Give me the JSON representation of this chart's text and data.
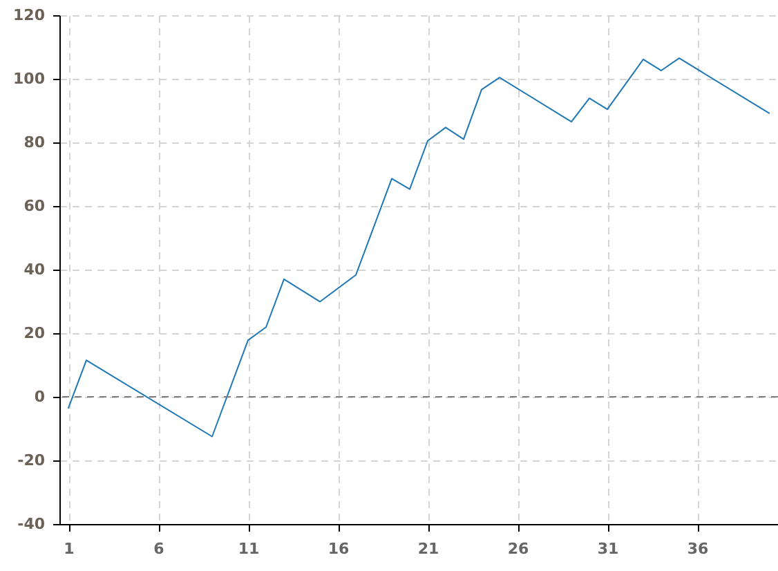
{
  "chart_data": {
    "type": "line",
    "x": [
      1,
      2,
      9,
      11,
      12,
      13,
      15,
      17,
      19,
      20,
      21,
      22,
      23,
      24,
      25,
      29,
      30,
      31,
      33,
      34,
      35,
      40
    ],
    "series": [
      {
        "color": "#1f78b4",
        "values": [
          -3.5,
          11.5,
          -12.5,
          17.8,
          21.9,
          37,
          29.9,
          38.3,
          68.6,
          65.3,
          80.5,
          84.7,
          81,
          96.6,
          100.4,
          86.5,
          93.9,
          90.4,
          106.1,
          102.6,
          106.5,
          89.2
        ]
      }
    ],
    "xlim": [
      0.5,
      40.5
    ],
    "xticks": [
      1,
      6,
      11,
      16,
      21,
      26,
      31,
      36
    ],
    "ylim": [
      -40,
      120
    ],
    "yticks": [
      -40,
      -20,
      0,
      20,
      40,
      60,
      80,
      100,
      120
    ],
    "grid": true,
    "ref_lines": [
      {
        "axis": "y",
        "value": 0,
        "color": "#808080",
        "line_style": "dashed"
      }
    ]
  }
}
